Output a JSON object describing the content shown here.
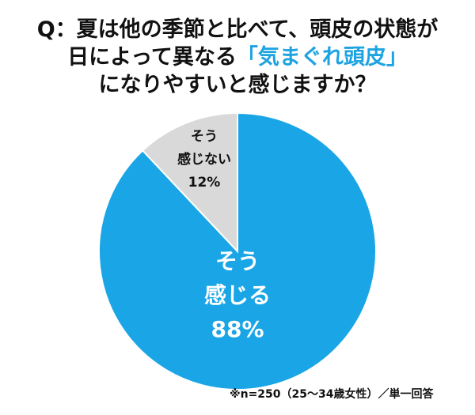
{
  "title": {
    "line1": "Q：夏は他の季節と比べて、頭皮の状態が",
    "line2_pre": "日によって異なる",
    "line2_hl": "「気まぐれ頭皮」",
    "line3": "になりやすいと感じますか？"
  },
  "chart_data": {
    "type": "pie",
    "slices": [
      {
        "label_l1": "そう",
        "label_l2": "感じる",
        "value": 88,
        "pct": "88%",
        "color": "#1aa5e6",
        "text_color": "#ffffff"
      },
      {
        "label_l1": "そう",
        "label_l2": "感じない",
        "value": 12,
        "pct": "12%",
        "color": "#d9d9d9",
        "text_color": "#111111"
      }
    ],
    "start": "top",
    "direction": "clockwise-blue-first"
  },
  "footnote": "※n=250（25～34歳女性）／単一回答"
}
